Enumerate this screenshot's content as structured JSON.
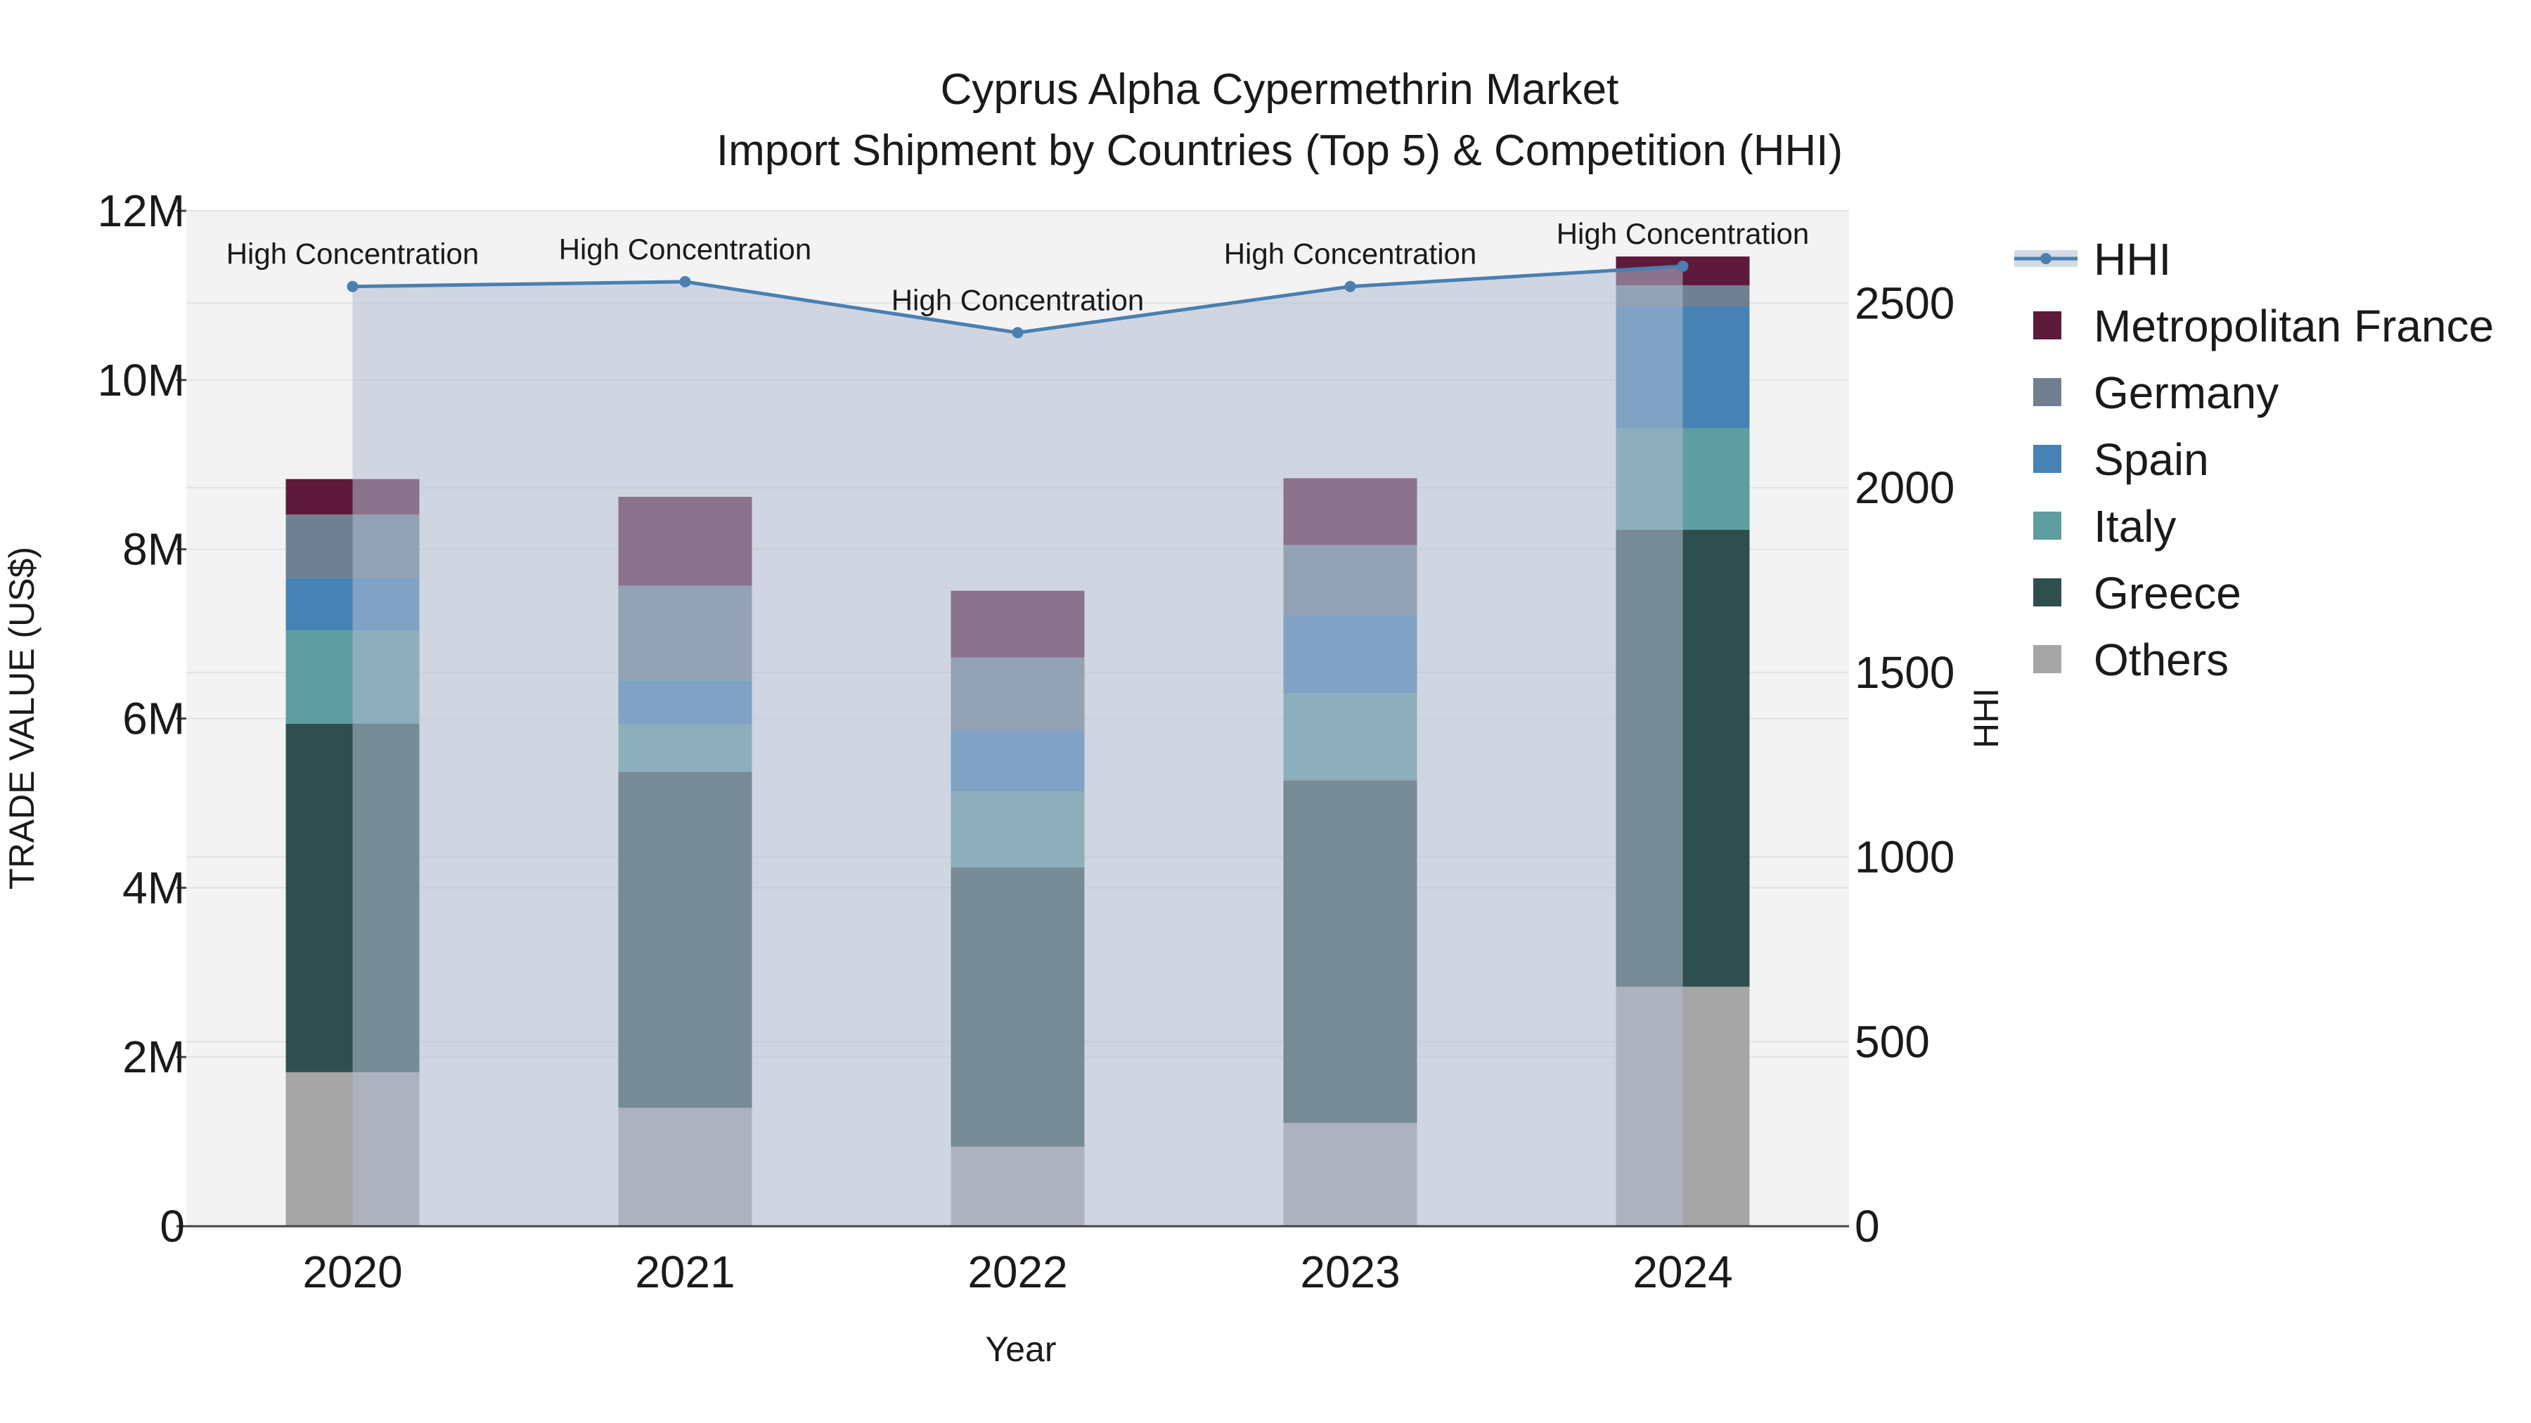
{
  "chart_data": {
    "type": "bar",
    "stacked": true,
    "title_line1": "Cyprus Alpha Cypermethrin Market",
    "title_line2": "Import Shipment by Countries (Top 5) & Competition (HHI)",
    "xlabel": "Year",
    "ylabel": "TRADE VALUE (US$)",
    "y2label": "HHI",
    "categories": [
      "2020",
      "2021",
      "2022",
      "2023",
      "2024"
    ],
    "ylim": [
      0,
      12000000
    ],
    "y_ticks": [
      0,
      2000000,
      4000000,
      6000000,
      8000000,
      10000000,
      12000000
    ],
    "y_tick_labels": [
      "0",
      "2M",
      "4M",
      "6M",
      "8M",
      "10M",
      "12M"
    ],
    "y2lim": [
      0,
      2750
    ],
    "y2_ticks": [
      0,
      500,
      1000,
      1500,
      2000,
      2500
    ],
    "y2_tick_labels": [
      "0",
      "500",
      "1000",
      "1500",
      "2000",
      "2500"
    ],
    "series": [
      {
        "name": "Others",
        "color": "#a6a6a6",
        "values": [
          1820000,
          1400000,
          940000,
          1220000,
          2830000
        ]
      },
      {
        "name": "Greece",
        "color": "#2f4f4f",
        "values": [
          4120000,
          3970000,
          3300000,
          4050000,
          5400000
        ]
      },
      {
        "name": "Italy",
        "color": "#5f9ea0",
        "values": [
          1100000,
          560000,
          900000,
          1030000,
          1200000
        ]
      },
      {
        "name": "Spain",
        "color": "#4682b4",
        "values": [
          620000,
          520000,
          720000,
          920000,
          1440000
        ]
      },
      {
        "name": "Germany",
        "color": "#708090",
        "values": [
          750000,
          1120000,
          860000,
          830000,
          250000
        ]
      },
      {
        "name": "Metropolitan France",
        "color": "#5e1a3a",
        "values": [
          420000,
          1050000,
          790000,
          790000,
          340000
        ]
      }
    ],
    "hhi": {
      "name": "HHI",
      "color": "#4a7fb0",
      "values": [
        2545,
        2558,
        2420,
        2545,
        2600
      ],
      "annotations": [
        "High Concentration",
        "High Concentration",
        "High Concentration",
        "High Concentration",
        "High Concentration"
      ]
    },
    "legend_order": [
      "HHI",
      "Metropolitan France",
      "Germany",
      "Spain",
      "Italy",
      "Greece",
      "Others"
    ],
    "legend_position": "right"
  }
}
